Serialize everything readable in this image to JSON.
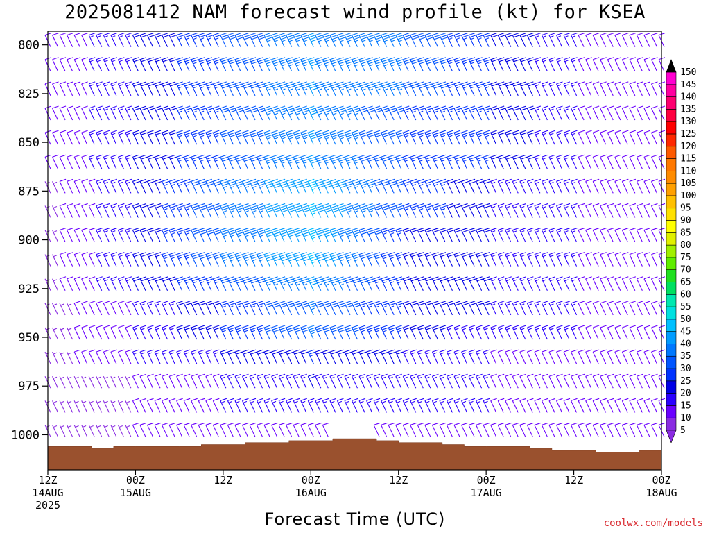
{
  "title": "2025081412 NAM forecast wind profile (kt) for KSEA",
  "credit": "coolwx.com/models",
  "chart_data": {
    "type": "barbs",
    "title": "2025081412 NAM forecast wind profile (kt) for KSEA",
    "xlabel": "Forecast Time (UTC)",
    "ylabel": "",
    "units": "kt",
    "y_axis": {
      "range": [
        793,
        1018
      ],
      "inverted": true,
      "ticks": [
        800,
        825,
        850,
        875,
        900,
        925,
        950,
        975,
        1000
      ]
    },
    "x_axis": {
      "range_hours": [
        0,
        84
      ],
      "ticks": [
        {
          "hour": 0,
          "l1": "12Z",
          "l2": "14AUG",
          "l3": "2025"
        },
        {
          "hour": 12,
          "l1": "00Z",
          "l2": "15AUG",
          "l3": ""
        },
        {
          "hour": 24,
          "l1": "12Z",
          "l2": "",
          "l3": ""
        },
        {
          "hour": 36,
          "l1": "00Z",
          "l2": "16AUG",
          "l3": ""
        },
        {
          "hour": 48,
          "l1": "12Z",
          "l2": "",
          "l3": ""
        },
        {
          "hour": 60,
          "l1": "00Z",
          "l2": "17AUG",
          "l3": ""
        },
        {
          "hour": 72,
          "l1": "12Z",
          "l2": "",
          "l3": ""
        },
        {
          "hour": 84,
          "l1": "00Z",
          "l2": "18AUG",
          "l3": ""
        }
      ]
    },
    "surface_pressure": [
      {
        "h": 0,
        "p": 1006
      },
      {
        "h": 3,
        "p": 1006
      },
      {
        "h": 6,
        "p": 1007
      },
      {
        "h": 9,
        "p": 1006
      },
      {
        "h": 12,
        "p": 1006
      },
      {
        "h": 18,
        "p": 1006
      },
      {
        "h": 21,
        "p": 1005
      },
      {
        "h": 24,
        "p": 1005
      },
      {
        "h": 27,
        "p": 1004
      },
      {
        "h": 30,
        "p": 1004
      },
      {
        "h": 33,
        "p": 1003
      },
      {
        "h": 36,
        "p": 1003
      },
      {
        "h": 39,
        "p": 1002
      },
      {
        "h": 42,
        "p": 1002
      },
      {
        "h": 45,
        "p": 1003
      },
      {
        "h": 48,
        "p": 1004
      },
      {
        "h": 51,
        "p": 1004
      },
      {
        "h": 54,
        "p": 1005
      },
      {
        "h": 57,
        "p": 1006
      },
      {
        "h": 60,
        "p": 1006
      },
      {
        "h": 63,
        "p": 1006
      },
      {
        "h": 66,
        "p": 1007
      },
      {
        "h": 69,
        "p": 1008
      },
      {
        "h": 72,
        "p": 1008
      },
      {
        "h": 75,
        "p": 1009
      },
      {
        "h": 78,
        "p": 1009
      },
      {
        "h": 81,
        "p": 1008
      },
      {
        "h": 84,
        "p": 1007
      }
    ],
    "colorbar": {
      "levels": [
        5,
        10,
        15,
        20,
        25,
        30,
        35,
        40,
        45,
        50,
        55,
        60,
        65,
        70,
        75,
        80,
        85,
        90,
        95,
        100,
        105,
        110,
        115,
        120,
        125,
        130,
        135,
        140,
        145,
        150
      ],
      "colors": [
        "#8a2be2",
        "#6a00ff",
        "#2a00ff",
        "#0000e6",
        "#0033ff",
        "#0055ff",
        "#0078ff",
        "#009cff",
        "#00c0ff",
        "#00e0e0",
        "#00e8b0",
        "#00e060",
        "#20e020",
        "#60ee00",
        "#a0f000",
        "#e0f000",
        "#ffff00",
        "#ffe000",
        "#ffc000",
        "#ffa000",
        "#ff8c00",
        "#ff7800",
        "#ff5a00",
        "#ff2800",
        "#ff0000",
        "#ff0040",
        "#ff0070",
        "#ff00a0",
        "#ff00d0",
        "#ff00ff"
      ]
    },
    "barb_levels": [
      800,
      812.5,
      825,
      837.5,
      850,
      862.5,
      875,
      887.5,
      900,
      912.5,
      925,
      937.5,
      950,
      962.5,
      975,
      987.5,
      1000
    ],
    "barb_hours_step": 1,
    "wind_field_note_speed_kt": {
      "west_weak_zone": 10,
      "core_max": 45
    },
    "wind_samples": [
      {
        "hour": 0,
        "speeds_kt": [
          10,
          10,
          10,
          10,
          10,
          10,
          8,
          8,
          8,
          8,
          8,
          8,
          8,
          8,
          8,
          8,
          8
        ]
      },
      {
        "hour": 12,
        "speeds_kt": [
          20,
          20,
          20,
          20,
          20,
          20,
          20,
          20,
          20,
          20,
          20,
          15,
          15,
          15,
          10,
          10,
          10
        ]
      },
      {
        "hour": 24,
        "speeds_kt": [
          30,
          30,
          30,
          30,
          30,
          30,
          35,
          35,
          35,
          35,
          30,
          25,
          25,
          20,
          15,
          15,
          10
        ]
      },
      {
        "hour": 36,
        "speeds_kt": [
          40,
          40,
          40,
          40,
          40,
          40,
          45,
          45,
          45,
          45,
          40,
          35,
          35,
          25,
          20,
          15,
          10
        ]
      },
      {
        "hour": 48,
        "speeds_kt": [
          35,
          35,
          35,
          30,
          30,
          30,
          30,
          30,
          25,
          25,
          25,
          25,
          25,
          20,
          15,
          15,
          10
        ]
      },
      {
        "hour": 60,
        "speeds_kt": [
          25,
          25,
          25,
          25,
          25,
          25,
          20,
          20,
          20,
          20,
          20,
          20,
          15,
          15,
          15,
          15,
          10
        ]
      },
      {
        "hour": 72,
        "speeds_kt": [
          15,
          15,
          15,
          15,
          15,
          15,
          15,
          15,
          15,
          15,
          15,
          15,
          15,
          10,
          10,
          10,
          10
        ]
      },
      {
        "hour": 84,
        "speeds_kt": [
          10,
          10,
          10,
          10,
          10,
          10,
          10,
          10,
          10,
          10,
          10,
          10,
          10,
          10,
          10,
          10,
          10
        ]
      }
    ]
  }
}
